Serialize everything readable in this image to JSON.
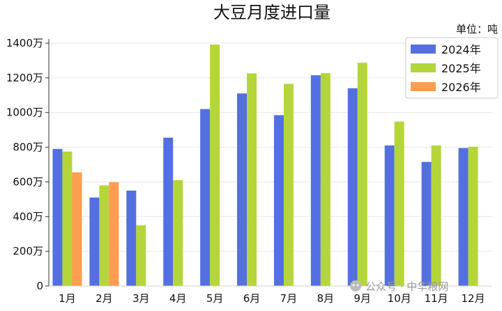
{
  "chart_data": {
    "type": "bar",
    "title": "大豆月度进口量",
    "unit_label": "单位：吨",
    "categories": [
      "1月",
      "2月",
      "3月",
      "4月",
      "5月",
      "6月",
      "7月",
      "8月",
      "9月",
      "10月",
      "11月",
      "12月"
    ],
    "y_ticks": [
      "0",
      "200万",
      "400万",
      "600万",
      "800万",
      "1000万",
      "1200万",
      "1400万"
    ],
    "ylim": [
      0,
      14000000
    ],
    "grid": true,
    "legend_position": "top-right",
    "series": [
      {
        "name": "2024年",
        "color": "#5470e0",
        "values": [
          7900000,
          5100000,
          5500000,
          8550000,
          10200000,
          11100000,
          9850000,
          12150000,
          11400000,
          8100000,
          7150000,
          7950000
        ]
      },
      {
        "name": "2025年",
        "color": "#b5d63a",
        "values": [
          7750000,
          5800000,
          3500000,
          6100000,
          13920000,
          12260000,
          11650000,
          12270000,
          12870000,
          9480000,
          8100000,
          8030000
        ]
      },
      {
        "name": "2026年",
        "color": "#ff9d50",
        "values": [
          6550000,
          5980000,
          null,
          null,
          null,
          null,
          null,
          null,
          null,
          null,
          null,
          null
        ]
      }
    ]
  },
  "watermark": {
    "text": "公众号 · 中华粮网"
  }
}
